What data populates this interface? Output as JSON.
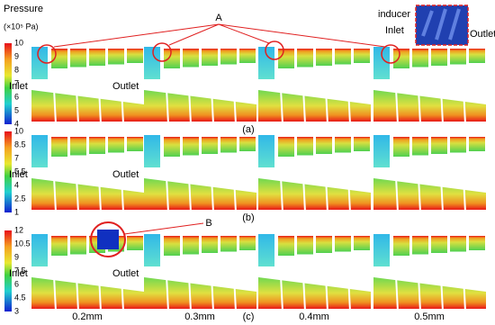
{
  "legend": {
    "title": "Pressure",
    "unit": "(×10⁵ Pa)"
  },
  "annotations": {
    "a": "A",
    "b": "B"
  },
  "inset": {
    "label": "inducer",
    "inlet": "Inlet",
    "outlet": "Outlet"
  },
  "panels": [
    {
      "label": "(a)",
      "ticks": [
        10,
        9,
        8,
        7,
        6,
        5,
        4
      ],
      "inlet": "Inlet",
      "outlet": "Outlet"
    },
    {
      "label": "(b)",
      "ticks": [
        10,
        8.5,
        7,
        5.5,
        4,
        2.5,
        1
      ],
      "inlet": "Inlet",
      "outlet": "Outlet"
    },
    {
      "label": "(c)",
      "ticks": [
        12,
        10.5,
        9,
        7.5,
        6,
        4.5,
        3
      ],
      "inlet": "Inlet",
      "outlet": "Outlet"
    }
  ],
  "columns": [
    "0.2mm",
    "0.3mm",
    "0.4mm",
    "0.5mm"
  ]
}
